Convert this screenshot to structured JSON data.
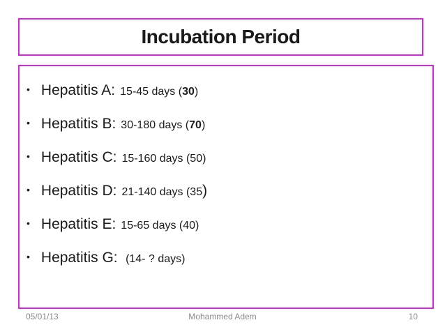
{
  "slide": {
    "title": "Incubation Period",
    "bullets": [
      {
        "label": "Hepatitis A:",
        "segments": [
          {
            "t": "15-45 days (",
            "bold": false,
            "large": false
          },
          {
            "t": "30",
            "bold": true,
            "large": false
          },
          {
            "t": ")",
            "bold": false,
            "large": false
          }
        ]
      },
      {
        "label": "Hepatitis B:",
        "segments": [
          {
            "t": "30-180 days (",
            "bold": false,
            "large": false
          },
          {
            "t": "70",
            "bold": true,
            "large": false
          },
          {
            "t": ")",
            "bold": false,
            "large": false
          }
        ]
      },
      {
        "label": "Hepatitis C:",
        "segments": [
          {
            "t": "15-160 days (50)",
            "bold": false,
            "large": false
          }
        ]
      },
      {
        "label": "Hepatitis D:",
        "segments": [
          {
            "t": "21-140 days (35",
            "bold": false,
            "large": false
          },
          {
            "t": ")",
            "bold": false,
            "large": true
          }
        ]
      },
      {
        "label": "Hepatitis E:",
        "segments": [
          {
            "t": "15-65 days (40)",
            "bold": false,
            "large": false
          }
        ]
      },
      {
        "label": "Hepatitis G:",
        "segments": [
          {
            "t": " (14- ? days)",
            "bold": false,
            "large": false
          }
        ]
      }
    ],
    "bullet_glyph": "•",
    "footer": {
      "date": "05/01/13",
      "author": "Mohammed Adem",
      "page": "10"
    }
  },
  "colors": {
    "border": "#B23FB5",
    "text": "#1a1a1a",
    "footer_text": "#8a8a8a",
    "background": "#ffffff"
  }
}
